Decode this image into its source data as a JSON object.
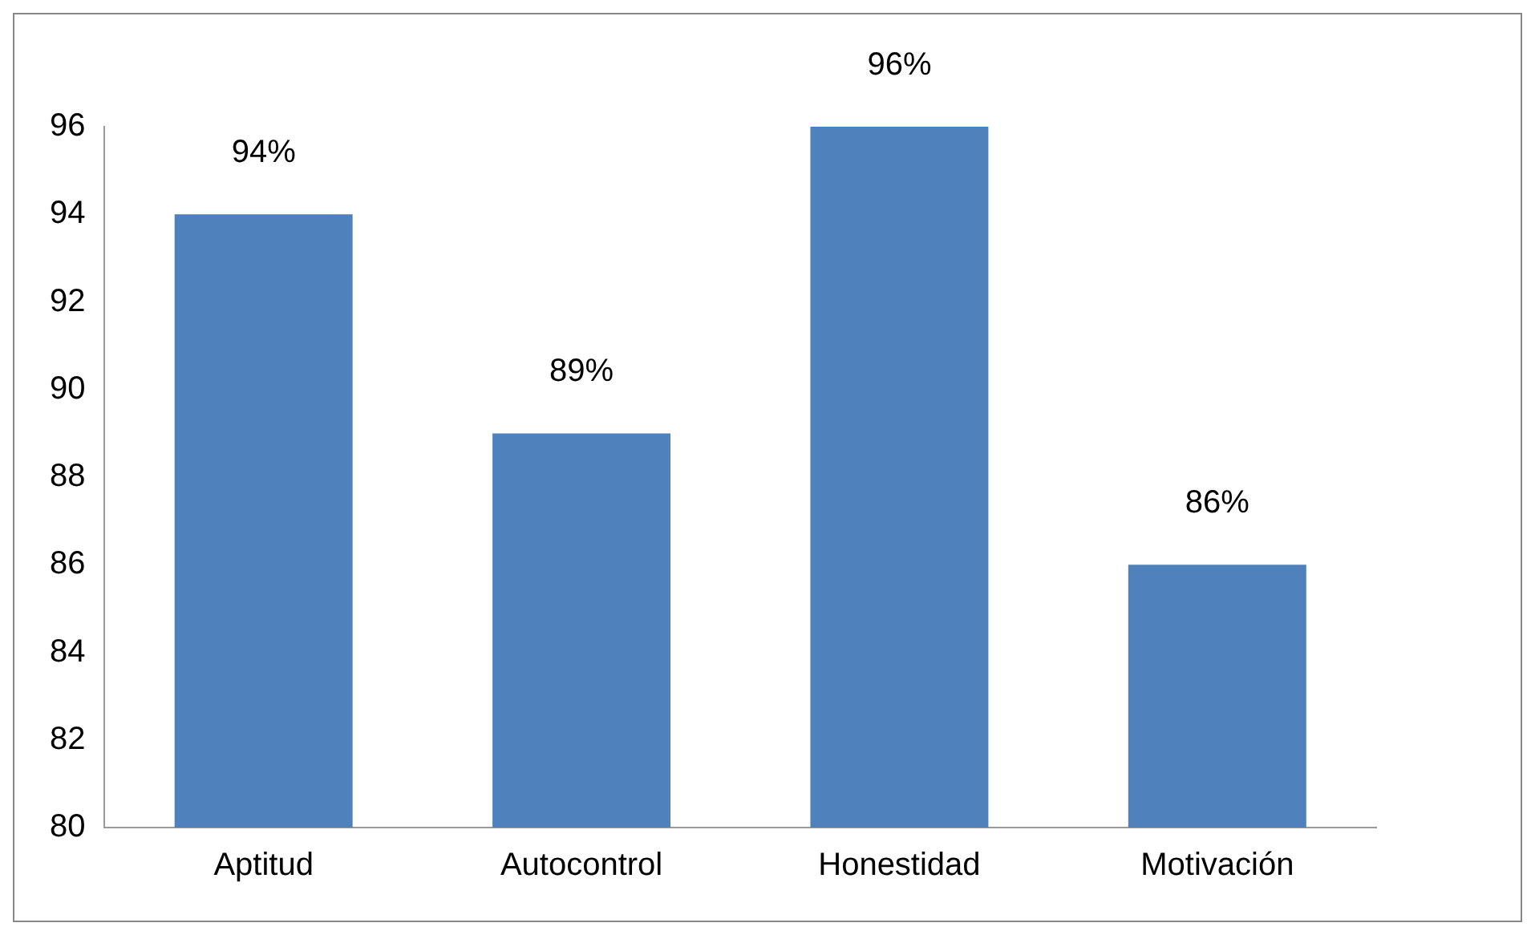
{
  "chart_data": {
    "type": "bar",
    "categories": [
      "Aptitud",
      "Autocontrol",
      "Honestidad",
      "Motivación"
    ],
    "values": [
      94,
      89,
      96,
      86
    ],
    "value_labels": [
      "94%",
      "89%",
      "96%",
      "86%"
    ],
    "color": "#4f81bd",
    "ylim": [
      80,
      96
    ],
    "yticks": [
      80,
      82,
      84,
      86,
      88,
      90,
      92,
      94,
      96
    ],
    "grid": false,
    "legend": false
  }
}
